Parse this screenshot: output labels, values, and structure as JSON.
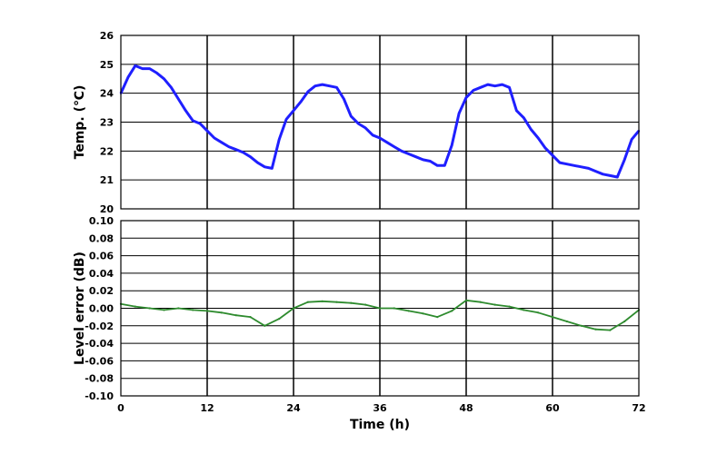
{
  "chart_data": [
    {
      "type": "line",
      "xlabel": "",
      "ylabel": "Temp. (℃)",
      "xlim": [
        0,
        72
      ],
      "ylim": [
        20,
        26
      ],
      "xticks": [
        "0",
        "12",
        "24",
        "36",
        "48",
        "60",
        "72"
      ],
      "yticks": [
        "20",
        "21",
        "22",
        "23",
        "24",
        "25",
        "26"
      ],
      "grid": true,
      "series": [
        {
          "color": "#1f1fff",
          "x": [
            0,
            1,
            2,
            3,
            4,
            5,
            6,
            7,
            8,
            9,
            10,
            11,
            12,
            13,
            14,
            15,
            16,
            17,
            18,
            19,
            20,
            21,
            22,
            23,
            24,
            25,
            26,
            27,
            28,
            29,
            30,
            31,
            32,
            33,
            34,
            35,
            36,
            37,
            38,
            39,
            40,
            41,
            42,
            43,
            44,
            45,
            46,
            47,
            48,
            49,
            50,
            51,
            52,
            53,
            54,
            55,
            56,
            57,
            58,
            59,
            60,
            61,
            62,
            63,
            64,
            65,
            66,
            67,
            68,
            69,
            70,
            71,
            72
          ],
          "y": [
            24.0,
            24.55,
            24.95,
            24.85,
            24.85,
            24.7,
            24.5,
            24.2,
            23.8,
            23.4,
            23.05,
            22.95,
            22.7,
            22.45,
            22.3,
            22.15,
            22.05,
            21.95,
            21.8,
            21.6,
            21.45,
            21.4,
            22.4,
            23.1,
            23.4,
            23.7,
            24.05,
            24.25,
            24.3,
            24.25,
            24.2,
            23.8,
            23.2,
            22.95,
            22.8,
            22.55,
            22.45,
            22.3,
            22.15,
            22.0,
            21.9,
            21.8,
            21.7,
            21.65,
            21.5,
            21.5,
            22.2,
            23.3,
            23.85,
            24.1,
            24.2,
            24.3,
            24.25,
            24.3,
            24.2,
            23.4,
            23.15,
            22.75,
            22.45,
            22.1,
            21.85,
            21.6,
            21.55,
            21.5,
            21.45,
            21.4,
            21.3,
            21.2,
            21.15,
            21.1,
            21.7,
            22.4,
            22.7
          ]
        }
      ]
    },
    {
      "type": "line",
      "xlabel": "Time (h)",
      "ylabel": "Level error (dB)",
      "xlim": [
        0,
        72
      ],
      "ylim": [
        -0.1,
        0.1
      ],
      "xticks": [
        "0",
        "12",
        "24",
        "36",
        "48",
        "60",
        "72"
      ],
      "yticks": [
        "-0.10",
        "-0.08",
        "-0.06",
        "-0.04",
        "-0.02",
        "0.00",
        "0.02",
        "0.04",
        "0.06",
        "0.08",
        "0.10"
      ],
      "grid": true,
      "series": [
        {
          "color": "#2e8b2e",
          "x": [
            0,
            2,
            4,
            6,
            8,
            10,
            12,
            14,
            16,
            18,
            20,
            22,
            24,
            26,
            28,
            30,
            32,
            34,
            36,
            38,
            40,
            42,
            44,
            46,
            48,
            50,
            52,
            54,
            56,
            58,
            60,
            62,
            64,
            66,
            68,
            70,
            72
          ],
          "y": [
            0.005,
            0.002,
            0.0,
            -0.002,
            0.0,
            -0.002,
            -0.003,
            -0.005,
            -0.008,
            -0.01,
            -0.02,
            -0.012,
            0.0,
            0.007,
            0.008,
            0.007,
            0.006,
            0.004,
            0.0,
            0.0,
            -0.003,
            -0.006,
            -0.01,
            -0.003,
            0.009,
            0.007,
            0.004,
            0.002,
            -0.002,
            -0.005,
            -0.01,
            -0.015,
            -0.02,
            -0.024,
            -0.025,
            -0.015,
            -0.002
          ]
        }
      ]
    }
  ]
}
